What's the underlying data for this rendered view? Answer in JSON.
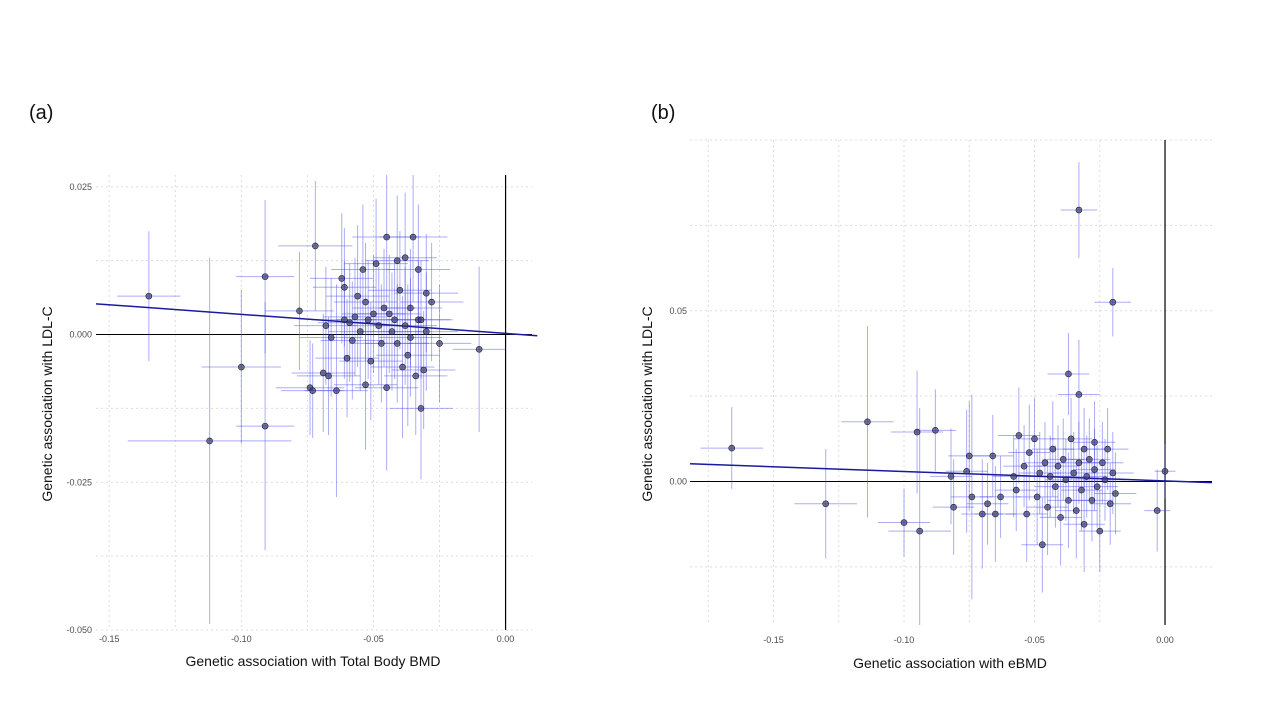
{
  "panels": {
    "a": {
      "label": "(a)"
    },
    "b": {
      "label": "(b)"
    }
  },
  "colors": {
    "point_fill": "#3a3a6e",
    "error_bar": "#4848ee",
    "regression_line": "#1a1a9e",
    "zero_line": "#000000",
    "grid": "#dcdcdc"
  },
  "chart_data": [
    {
      "type": "scatter",
      "panel": "(a)",
      "title": "",
      "xlabel": "Genetic association with Total Body BMD",
      "ylabel": "Genetic association with LDL-C",
      "xlim": [
        -0.155,
        0.01
      ],
      "ylim": [
        -0.05,
        0.027
      ],
      "xticks": [
        -0.15,
        -0.1,
        -0.05,
        0.0
      ],
      "xtick_labels": [
        "-0.15",
        "-0.10",
        "-0.05",
        "0.00"
      ],
      "yticks": [
        0.025,
        0.0,
        -0.025,
        -0.05
      ],
      "ytick_labels": [
        "0.025",
        "0.000",
        "-0.025",
        "-0.050"
      ],
      "grid": true,
      "regression_line": {
        "x": [
          -0.155,
          0.012
        ],
        "y": [
          0.0052,
          -0.0002
        ]
      },
      "points": [
        {
          "x": -0.135,
          "y": 0.0065,
          "xerr": 0.012,
          "yerr": 0.011
        },
        {
          "x": -0.112,
          "y": -0.018,
          "xerr": 0.031,
          "yerr": 0.031
        },
        {
          "x": -0.1,
          "y": -0.0055,
          "xerr": 0.015,
          "yerr": 0.013
        },
        {
          "x": -0.091,
          "y": 0.0098,
          "xerr": 0.011,
          "yerr": 0.013
        },
        {
          "x": -0.091,
          "y": -0.0155,
          "xerr": 0.011,
          "yerr": 0.021
        },
        {
          "x": -0.078,
          "y": 0.004,
          "xerr": 0.013,
          "yerr": 0.01
        },
        {
          "x": -0.074,
          "y": -0.009,
          "xerr": 0.013,
          "yerr": 0.008
        },
        {
          "x": -0.073,
          "y": -0.0095,
          "xerr": 0.012,
          "yerr": 0.008
        },
        {
          "x": -0.072,
          "y": 0.015,
          "xerr": 0.014,
          "yerr": 0.011
        },
        {
          "x": -0.069,
          "y": -0.0065,
          "xerr": 0.012,
          "yerr": 0.01
        },
        {
          "x": -0.068,
          "y": 0.0015,
          "xerr": 0.012,
          "yerr": 0.01
        },
        {
          "x": -0.067,
          "y": -0.007,
          "xerr": 0.012,
          "yerr": 0.01
        },
        {
          "x": -0.066,
          "y": -0.0005,
          "xerr": 0.012,
          "yerr": 0.01
        },
        {
          "x": -0.064,
          "y": -0.0095,
          "xerr": 0.012,
          "yerr": 0.018
        },
        {
          "x": -0.062,
          "y": 0.0095,
          "xerr": 0.012,
          "yerr": 0.011
        },
        {
          "x": -0.061,
          "y": 0.008,
          "xerr": 0.012,
          "yerr": 0.01
        },
        {
          "x": -0.061,
          "y": 0.0025,
          "xerr": 0.012,
          "yerr": 0.01
        },
        {
          "x": -0.06,
          "y": -0.004,
          "xerr": 0.012,
          "yerr": 0.01
        },
        {
          "x": -0.059,
          "y": 0.002,
          "xerr": 0.012,
          "yerr": 0.01
        },
        {
          "x": -0.058,
          "y": -0.001,
          "xerr": 0.012,
          "yerr": 0.01
        },
        {
          "x": -0.057,
          "y": 0.003,
          "xerr": 0.012,
          "yerr": 0.01
        },
        {
          "x": -0.056,
          "y": 0.0065,
          "xerr": 0.012,
          "yerr": 0.012
        },
        {
          "x": -0.055,
          "y": 0.0005,
          "xerr": 0.012,
          "yerr": 0.01
        },
        {
          "x": -0.054,
          "y": 0.011,
          "xerr": 0.012,
          "yerr": 0.011
        },
        {
          "x": -0.053,
          "y": -0.0085,
          "xerr": 0.012,
          "yerr": 0.011
        },
        {
          "x": -0.053,
          "y": 0.0055,
          "xerr": 0.012,
          "yerr": 0.01
        },
        {
          "x": -0.052,
          "y": 0.0025,
          "xerr": 0.012,
          "yerr": 0.01
        },
        {
          "x": -0.051,
          "y": -0.0045,
          "xerr": 0.012,
          "yerr": 0.01
        },
        {
          "x": -0.05,
          "y": 0.0035,
          "xerr": 0.012,
          "yerr": 0.01
        },
        {
          "x": -0.049,
          "y": 0.012,
          "xerr": 0.012,
          "yerr": 0.011
        },
        {
          "x": -0.048,
          "y": 0.0015,
          "xerr": 0.012,
          "yerr": 0.01
        },
        {
          "x": -0.047,
          "y": -0.0015,
          "xerr": 0.012,
          "yerr": 0.01
        },
        {
          "x": -0.046,
          "y": 0.0045,
          "xerr": 0.012,
          "yerr": 0.01
        },
        {
          "x": -0.045,
          "y": -0.009,
          "xerr": 0.012,
          "yerr": 0.014
        },
        {
          "x": -0.045,
          "y": 0.0165,
          "xerr": 0.013,
          "yerr": 0.011
        },
        {
          "x": -0.044,
          "y": 0.0035,
          "xerr": 0.012,
          "yerr": 0.01
        },
        {
          "x": -0.043,
          "y": 0.0005,
          "xerr": 0.012,
          "yerr": 0.01
        },
        {
          "x": -0.042,
          "y": 0.0025,
          "xerr": 0.012,
          "yerr": 0.01
        },
        {
          "x": -0.041,
          "y": -0.0015,
          "xerr": 0.012,
          "yerr": 0.01
        },
        {
          "x": -0.041,
          "y": 0.0125,
          "xerr": 0.012,
          "yerr": 0.011
        },
        {
          "x": -0.04,
          "y": 0.0075,
          "xerr": 0.012,
          "yerr": 0.01
        },
        {
          "x": -0.039,
          "y": -0.0055,
          "xerr": 0.012,
          "yerr": 0.012
        },
        {
          "x": -0.038,
          "y": 0.013,
          "xerr": 0.012,
          "yerr": 0.011
        },
        {
          "x": -0.038,
          "y": 0.0015,
          "xerr": 0.012,
          "yerr": 0.01
        },
        {
          "x": -0.037,
          "y": -0.0035,
          "xerr": 0.012,
          "yerr": 0.012
        },
        {
          "x": -0.036,
          "y": -0.0005,
          "xerr": 0.012,
          "yerr": 0.01
        },
        {
          "x": -0.036,
          "y": 0.0045,
          "xerr": 0.012,
          "yerr": 0.01
        },
        {
          "x": -0.035,
          "y": 0.0165,
          "xerr": 0.013,
          "yerr": 0.011
        },
        {
          "x": -0.034,
          "y": -0.007,
          "xerr": 0.012,
          "yerr": 0.01
        },
        {
          "x": -0.033,
          "y": 0.011,
          "xerr": 0.012,
          "yerr": 0.011
        },
        {
          "x": -0.033,
          "y": 0.0025,
          "xerr": 0.012,
          "yerr": 0.01
        },
        {
          "x": -0.032,
          "y": 0.0025,
          "xerr": 0.012,
          "yerr": 0.01
        },
        {
          "x": -0.032,
          "y": -0.0125,
          "xerr": 0.012,
          "yerr": 0.012
        },
        {
          "x": -0.031,
          "y": -0.006,
          "xerr": 0.012,
          "yerr": 0.01
        },
        {
          "x": -0.03,
          "y": 0.0005,
          "xerr": 0.012,
          "yerr": 0.01
        },
        {
          "x": -0.03,
          "y": 0.007,
          "xerr": 0.012,
          "yerr": 0.01
        },
        {
          "x": -0.028,
          "y": 0.0055,
          "xerr": 0.012,
          "yerr": 0.01
        },
        {
          "x": -0.025,
          "y": -0.0015,
          "xerr": 0.012,
          "yerr": 0.01
        },
        {
          "x": -0.01,
          "y": -0.0025,
          "xerr": 0.01,
          "yerr": 0.014
        }
      ]
    },
    {
      "type": "scatter",
      "panel": "(b)",
      "title": "",
      "xlabel": "Genetic association with eBMD",
      "ylabel": "Genetic association with LDL-C",
      "xlim": [
        -0.182,
        0.018
      ],
      "ylim": [
        -0.042,
        0.1
      ],
      "xticks": [
        -0.15,
        -0.1,
        -0.05,
        0.0
      ],
      "xtick_labels": [
        "-0.15",
        "-0.10",
        "-0.05",
        "0.00"
      ],
      "yticks": [
        0.05,
        0.0
      ],
      "ytick_labels": [
        "0.05",
        "0.00"
      ],
      "grid": true,
      "regression_line": {
        "x": [
          -0.182,
          0.018
        ],
        "y": [
          0.0052,
          -0.0003
        ]
      },
      "points": [
        {
          "x": -0.166,
          "y": 0.0098,
          "xerr": 0.012,
          "yerr": 0.012
        },
        {
          "x": -0.13,
          "y": -0.0065,
          "xerr": 0.012,
          "yerr": 0.016
        },
        {
          "x": -0.114,
          "y": 0.0175,
          "xerr": 0.01,
          "yerr": 0.028
        },
        {
          "x": -0.1,
          "y": -0.012,
          "xerr": 0.01,
          "yerr": 0.01
        },
        {
          "x": -0.095,
          "y": 0.0145,
          "xerr": 0.01,
          "yerr": 0.018
        },
        {
          "x": -0.094,
          "y": -0.0145,
          "xerr": 0.012,
          "yerr": 0.036
        },
        {
          "x": -0.088,
          "y": 0.015,
          "xerr": 0.008,
          "yerr": 0.012
        },
        {
          "x": -0.082,
          "y": 0.0015,
          "xerr": 0.008,
          "yerr": 0.014
        },
        {
          "x": -0.081,
          "y": -0.0075,
          "xerr": 0.008,
          "yerr": 0.014
        },
        {
          "x": -0.076,
          "y": 0.003,
          "xerr": 0.008,
          "yerr": 0.018
        },
        {
          "x": -0.075,
          "y": 0.0075,
          "xerr": 0.008,
          "yerr": 0.016
        },
        {
          "x": -0.074,
          "y": -0.0045,
          "xerr": 0.008,
          "yerr": 0.03
        },
        {
          "x": -0.07,
          "y": -0.0095,
          "xerr": 0.008,
          "yerr": 0.016
        },
        {
          "x": -0.068,
          "y": -0.0065,
          "xerr": 0.008,
          "yerr": 0.012
        },
        {
          "x": -0.066,
          "y": 0.0075,
          "xerr": 0.008,
          "yerr": 0.012
        },
        {
          "x": -0.065,
          "y": -0.0095,
          "xerr": 0.008,
          "yerr": 0.014
        },
        {
          "x": -0.063,
          "y": -0.0045,
          "xerr": 0.008,
          "yerr": 0.012
        },
        {
          "x": -0.058,
          "y": 0.0015,
          "xerr": 0.008,
          "yerr": 0.012
        },
        {
          "x": -0.057,
          "y": -0.0025,
          "xerr": 0.008,
          "yerr": 0.012
        },
        {
          "x": -0.056,
          "y": 0.0135,
          "xerr": 0.008,
          "yerr": 0.014
        },
        {
          "x": -0.054,
          "y": 0.0045,
          "xerr": 0.008,
          "yerr": 0.012
        },
        {
          "x": -0.053,
          "y": -0.0095,
          "xerr": 0.008,
          "yerr": 0.014
        },
        {
          "x": -0.052,
          "y": 0.0085,
          "xerr": 0.008,
          "yerr": 0.014
        },
        {
          "x": -0.05,
          "y": 0.0125,
          "xerr": 0.008,
          "yerr": 0.012
        },
        {
          "x": -0.049,
          "y": -0.0045,
          "xerr": 0.008,
          "yerr": 0.014
        },
        {
          "x": -0.048,
          "y": 0.0025,
          "xerr": 0.008,
          "yerr": 0.012
        },
        {
          "x": -0.047,
          "y": -0.0185,
          "xerr": 0.008,
          "yerr": 0.014
        },
        {
          "x": -0.046,
          "y": 0.0055,
          "xerr": 0.008,
          "yerr": 0.012
        },
        {
          "x": -0.045,
          "y": -0.0075,
          "xerr": 0.008,
          "yerr": 0.014
        },
        {
          "x": -0.044,
          "y": 0.0015,
          "xerr": 0.008,
          "yerr": 0.012
        },
        {
          "x": -0.043,
          "y": 0.0095,
          "xerr": 0.008,
          "yerr": 0.014
        },
        {
          "x": -0.042,
          "y": -0.0015,
          "xerr": 0.008,
          "yerr": 0.012
        },
        {
          "x": -0.041,
          "y": 0.0045,
          "xerr": 0.008,
          "yerr": 0.012
        },
        {
          "x": -0.04,
          "y": -0.0105,
          "xerr": 0.008,
          "yerr": 0.014
        },
        {
          "x": -0.039,
          "y": 0.0065,
          "xerr": 0.008,
          "yerr": 0.012
        },
        {
          "x": -0.038,
          "y": 0.0005,
          "xerr": 0.008,
          "yerr": 0.012
        },
        {
          "x": -0.037,
          "y": 0.0315,
          "xerr": 0.008,
          "yerr": 0.012
        },
        {
          "x": -0.037,
          "y": -0.0055,
          "xerr": 0.008,
          "yerr": 0.014
        },
        {
          "x": -0.036,
          "y": 0.0125,
          "xerr": 0.008,
          "yerr": 0.012
        },
        {
          "x": -0.035,
          "y": 0.0025,
          "xerr": 0.008,
          "yerr": 0.012
        },
        {
          "x": -0.034,
          "y": -0.0085,
          "xerr": 0.008,
          "yerr": 0.014
        },
        {
          "x": -0.033,
          "y": 0.0795,
          "xerr": 0.007,
          "yerr": 0.014
        },
        {
          "x": -0.033,
          "y": 0.0255,
          "xerr": 0.008,
          "yerr": 0.016
        },
        {
          "x": -0.033,
          "y": 0.0055,
          "xerr": 0.008,
          "yerr": 0.012
        },
        {
          "x": -0.032,
          "y": -0.0025,
          "xerr": 0.008,
          "yerr": 0.012
        },
        {
          "x": -0.031,
          "y": 0.0095,
          "xerr": 0.008,
          "yerr": 0.012
        },
        {
          "x": -0.031,
          "y": -0.0125,
          "xerr": 0.008,
          "yerr": 0.014
        },
        {
          "x": -0.03,
          "y": 0.0015,
          "xerr": 0.008,
          "yerr": 0.012
        },
        {
          "x": -0.029,
          "y": 0.0065,
          "xerr": 0.008,
          "yerr": 0.012
        },
        {
          "x": -0.028,
          "y": -0.0055,
          "xerr": 0.008,
          "yerr": 0.012
        },
        {
          "x": -0.027,
          "y": 0.0035,
          "xerr": 0.008,
          "yerr": 0.012
        },
        {
          "x": -0.027,
          "y": 0.0115,
          "xerr": 0.008,
          "yerr": 0.012
        },
        {
          "x": -0.026,
          "y": -0.0015,
          "xerr": 0.008,
          "yerr": 0.012
        },
        {
          "x": -0.025,
          "y": -0.0145,
          "xerr": 0.008,
          "yerr": 0.012
        },
        {
          "x": -0.024,
          "y": 0.0055,
          "xerr": 0.008,
          "yerr": 0.012
        },
        {
          "x": -0.023,
          "y": 0.0005,
          "xerr": 0.008,
          "yerr": 0.012
        },
        {
          "x": -0.022,
          "y": 0.0095,
          "xerr": 0.008,
          "yerr": 0.012
        },
        {
          "x": -0.021,
          "y": -0.0065,
          "xerr": 0.008,
          "yerr": 0.012
        },
        {
          "x": -0.02,
          "y": 0.0525,
          "xerr": 0.007,
          "yerr": 0.01
        },
        {
          "x": -0.02,
          "y": 0.0025,
          "xerr": 0.008,
          "yerr": 0.012
        },
        {
          "x": -0.019,
          "y": -0.0035,
          "xerr": 0.008,
          "yerr": 0.012
        },
        {
          "x": -0.003,
          "y": -0.0085,
          "xerr": 0.005,
          "yerr": 0.012
        },
        {
          "x": 0.0,
          "y": 0.003,
          "xerr": 0.004,
          "yerr": 0.008
        }
      ]
    }
  ]
}
